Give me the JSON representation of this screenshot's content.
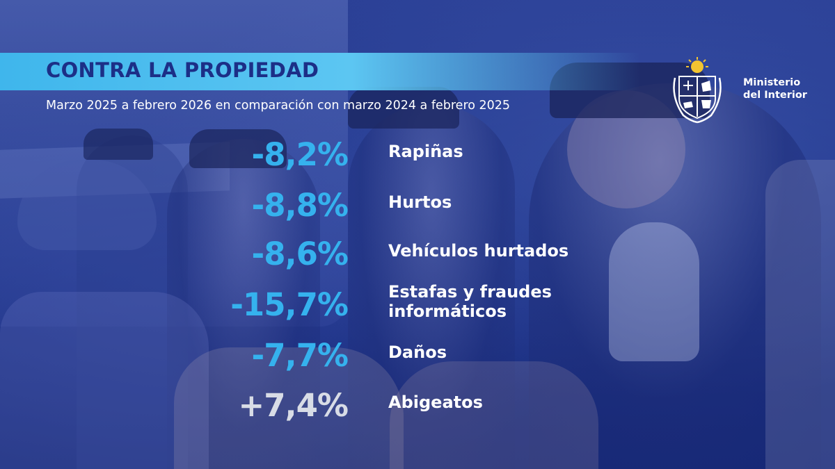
{
  "header": {
    "title": "CONTRA LA PROPIEDAD",
    "subtitle": "Marzo 2025 a febrero 2026 en comparación con marzo 2024 a febrero 2025"
  },
  "branding": {
    "logo_icon": "uruguay-coat-of-arms-icon",
    "org_line_1": "Ministerio",
    "org_line_2": "del Interior"
  },
  "stats": [
    {
      "value": "-8,2%",
      "label_line_1": "Rapiñas",
      "label_line_2": ""
    },
    {
      "value": "-8,8%",
      "label_line_1": "Hurtos",
      "label_line_2": ""
    },
    {
      "value": "-8,6%",
      "label_line_1": "Vehículos hurtados",
      "label_line_2": ""
    },
    {
      "value": "-15,7%",
      "label_line_1": "Estafas y fraudes",
      "label_line_2": "informáticos"
    },
    {
      "value": "-7,7%",
      "label_line_1": "Daños",
      "label_line_2": ""
    },
    {
      "value": "+7,4%",
      "label_line_1": "Abigeatos",
      "label_line_2": ""
    }
  ],
  "colors": {
    "background": "#1c3288",
    "accent_band": "#4cbef0",
    "title_text": "#1c2f87",
    "negative_value": "#35b2ee",
    "positive_value": "#d8dce6",
    "label_text": "#ffffff"
  }
}
